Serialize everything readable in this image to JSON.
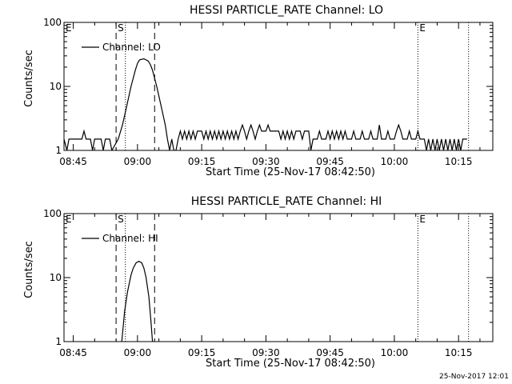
{
  "footer_timestamp": "25-Nov-2017 12:01",
  "chart_data": [
    {
      "type": "line",
      "title": "HESSI PARTICLE_RATE Channel: LO",
      "xlabel": "Start Time (25-Nov-17 08:42:50)",
      "ylabel": "Counts/sec",
      "x_ticks": [
        "08:45",
        "09:00",
        "09:15",
        "09:30",
        "09:45",
        "10:00",
        "10:15"
      ],
      "y_ticks": [
        "1",
        "10",
        "100"
      ],
      "xlim": [
        "08:42:50",
        "10:23:00"
      ],
      "ylim": [
        1,
        100
      ],
      "yscale": "log",
      "legend": {
        "label": "Channel: LO",
        "placement": "top-left"
      },
      "markers": [
        {
          "label": "E",
          "time": "08:42:50",
          "style": "none"
        },
        {
          "label": "S",
          "time": "08:55:00",
          "style": "dashed"
        },
        {
          "label": "",
          "time": "08:57:10",
          "style": "dotted"
        },
        {
          "label": "",
          "time": "09:04:00",
          "style": "dashed"
        },
        {
          "label": "E",
          "time": "10:05:30",
          "style": "dotted"
        },
        {
          "label": "",
          "time": "10:17:20",
          "style": "dotted"
        }
      ],
      "series": [
        {
          "name": "Channel: LO",
          "points": [
            [
              "08:42:50",
              1.5
            ],
            [
              "08:43:30",
              1
            ],
            [
              "08:44:00",
              1.5
            ],
            [
              "08:47:00",
              1.5
            ],
            [
              "08:47:30",
              2
            ],
            [
              "08:48:00",
              1.5
            ],
            [
              "08:49:00",
              1.5
            ],
            [
              "08:49:30",
              1
            ],
            [
              "08:50:00",
              1.5
            ],
            [
              "08:51:30",
              1.5
            ],
            [
              "08:52:00",
              1
            ],
            [
              "08:52:30",
              1.5
            ],
            [
              "08:53:30",
              1.5
            ],
            [
              "08:54:00",
              1
            ],
            [
              "08:55:30",
              1.5
            ],
            [
              "08:56:30",
              2.5
            ],
            [
              "08:57:30",
              5
            ],
            [
              "08:58:30",
              10
            ],
            [
              "08:59:30",
              18
            ],
            [
              "09:00:00",
              23
            ],
            [
              "09:00:30",
              26
            ],
            [
              "09:01:30",
              27
            ],
            [
              "09:02:30",
              25
            ],
            [
              "09:03:00",
              22
            ],
            [
              "09:03:30",
              18
            ],
            [
              "09:04:30",
              10
            ],
            [
              "09:05:30",
              5
            ],
            [
              "09:06:30",
              2.5
            ],
            [
              "09:07:00",
              1.5
            ],
            [
              "09:07:30",
              1
            ],
            [
              "09:08:00",
              1.5
            ],
            [
              "09:08:30",
              1
            ],
            [
              "09:09:00",
              1
            ],
            [
              "09:09:30",
              1.5
            ],
            [
              "09:10:00",
              2
            ],
            [
              "09:10:30",
              1.5
            ],
            [
              "09:11:00",
              2
            ],
            [
              "09:11:30",
              1.5
            ],
            [
              "09:12:00",
              2
            ],
            [
              "09:12:30",
              1.5
            ],
            [
              "09:13:00",
              2
            ],
            [
              "09:13:30",
              1.5
            ],
            [
              "09:14:00",
              2
            ],
            [
              "09:15:00",
              2
            ],
            [
              "09:15:30",
              1.5
            ],
            [
              "09:16:00",
              2
            ],
            [
              "09:16:30",
              1.5
            ],
            [
              "09:17:00",
              2
            ],
            [
              "09:17:30",
              1.5
            ],
            [
              "09:18:00",
              2
            ],
            [
              "09:18:30",
              1.5
            ],
            [
              "09:19:00",
              2
            ],
            [
              "09:19:30",
              1.5
            ],
            [
              "09:20:00",
              2
            ],
            [
              "09:20:30",
              1.5
            ],
            [
              "09:21:00",
              2
            ],
            [
              "09:21:30",
              1.5
            ],
            [
              "09:22:00",
              2
            ],
            [
              "09:22:30",
              1.5
            ],
            [
              "09:23:00",
              2
            ],
            [
              "09:23:30",
              1.5
            ],
            [
              "09:24:00",
              2
            ],
            [
              "09:24:30",
              2.5
            ],
            [
              "09:25:00",
              2
            ],
            [
              "09:25:30",
              1.5
            ],
            [
              "09:26:00",
              2
            ],
            [
              "09:26:30",
              2.5
            ],
            [
              "09:27:00",
              2
            ],
            [
              "09:27:30",
              1.5
            ],
            [
              "09:28:00",
              2
            ],
            [
              "09:28:30",
              2.5
            ],
            [
              "09:29:00",
              2
            ],
            [
              "09:30:00",
              2
            ],
            [
              "09:30:30",
              2.5
            ],
            [
              "09:31:00",
              2
            ],
            [
              "09:33:00",
              2
            ],
            [
              "09:33:30",
              1.5
            ],
            [
              "09:34:00",
              2
            ],
            [
              "09:34:30",
              1.5
            ],
            [
              "09:35:00",
              2
            ],
            [
              "09:35:30",
              1.5
            ],
            [
              "09:36:00",
              2
            ],
            [
              "09:36:30",
              1.5
            ],
            [
              "09:37:00",
              2
            ],
            [
              "09:38:00",
              2
            ],
            [
              "09:38:30",
              1.5
            ],
            [
              "09:39:00",
              2
            ],
            [
              "09:40:00",
              2
            ],
            [
              "09:40:30",
              1
            ],
            [
              "09:41:00",
              1.5
            ],
            [
              "09:42:00",
              1.5
            ],
            [
              "09:42:30",
              2
            ],
            [
              "09:43:00",
              1.5
            ],
            [
              "09:44:00",
              1.5
            ],
            [
              "09:44:30",
              2
            ],
            [
              "09:45:00",
              1.5
            ],
            [
              "09:45:30",
              2
            ],
            [
              "09:46:00",
              1.5
            ],
            [
              "09:46:30",
              2
            ],
            [
              "09:47:00",
              1.5
            ],
            [
              "09:47:30",
              2
            ],
            [
              "09:48:00",
              1.5
            ],
            [
              "09:48:30",
              2
            ],
            [
              "09:49:00",
              1.5
            ],
            [
              "09:50:00",
              1.5
            ],
            [
              "09:50:30",
              2
            ],
            [
              "09:51:00",
              1.5
            ],
            [
              "09:52:00",
              1.5
            ],
            [
              "09:52:30",
              2
            ],
            [
              "09:53:00",
              1.5
            ],
            [
              "09:54:00",
              1.5
            ],
            [
              "09:54:30",
              2
            ],
            [
              "09:55:00",
              1.5
            ],
            [
              "09:56:00",
              1.5
            ],
            [
              "09:56:30",
              2.5
            ],
            [
              "09:57:00",
              1.5
            ],
            [
              "09:58:00",
              1.5
            ],
            [
              "09:58:30",
              2
            ],
            [
              "09:59:00",
              1.5
            ],
            [
              "10:00:00",
              1.5
            ],
            [
              "10:00:30",
              2
            ],
            [
              "10:01:00",
              2.5
            ],
            [
              "10:01:30",
              2
            ],
            [
              "10:02:00",
              1.5
            ],
            [
              "10:03:00",
              1.5
            ],
            [
              "10:03:30",
              2
            ],
            [
              "10:04:00",
              1.5
            ],
            [
              "10:05:00",
              1.5
            ],
            [
              "10:05:30",
              2
            ],
            [
              "10:06:00",
              1.5
            ],
            [
              "10:07:00",
              1.5
            ],
            [
              "10:07:30",
              1
            ],
            [
              "10:08:00",
              1.5
            ],
            [
              "10:08:30",
              1
            ],
            [
              "10:09:00",
              1.5
            ],
            [
              "10:09:30",
              1
            ],
            [
              "10:10:00",
              1.5
            ],
            [
              "10:10:30",
              1
            ],
            [
              "10:11:00",
              1.5
            ],
            [
              "10:11:30",
              1
            ],
            [
              "10:12:00",
              1.5
            ],
            [
              "10:12:30",
              1
            ],
            [
              "10:13:00",
              1.5
            ],
            [
              "10:13:30",
              1
            ],
            [
              "10:14:00",
              1.5
            ],
            [
              "10:14:30",
              1
            ],
            [
              "10:15:00",
              1.5
            ],
            [
              "10:15:30",
              1
            ],
            [
              "10:16:00",
              1.5
            ],
            [
              "10:17:00",
              1.5
            ]
          ]
        }
      ]
    },
    {
      "type": "line",
      "title": "HESSI PARTICLE_RATE Channel: HI",
      "xlabel": "Start Time (25-Nov-17 08:42:50)",
      "ylabel": "Counts/sec",
      "x_ticks": [
        "08:45",
        "09:00",
        "09:15",
        "09:30",
        "09:45",
        "10:00",
        "10:15"
      ],
      "y_ticks": [
        "1",
        "10",
        "100"
      ],
      "xlim": [
        "08:42:50",
        "10:23:00"
      ],
      "ylim": [
        1,
        100
      ],
      "yscale": "log",
      "legend": {
        "label": "Channel: HI",
        "placement": "top-left"
      },
      "markers": [
        {
          "label": "E",
          "time": "08:42:50",
          "style": "none"
        },
        {
          "label": "S",
          "time": "08:55:00",
          "style": "dashed"
        },
        {
          "label": "",
          "time": "08:57:10",
          "style": "dotted"
        },
        {
          "label": "",
          "time": "09:04:00",
          "style": "dashed"
        },
        {
          "label": "E",
          "time": "10:05:30",
          "style": "dotted"
        },
        {
          "label": "",
          "time": "10:17:20",
          "style": "dotted"
        }
      ],
      "series": [
        {
          "name": "Channel: HI",
          "points": [
            [
              "08:56:20",
              1
            ],
            [
              "08:57:00",
              3
            ],
            [
              "08:57:40",
              6
            ],
            [
              "08:58:30",
              11
            ],
            [
              "08:59:00",
              14
            ],
            [
              "08:59:40",
              17
            ],
            [
              "09:00:20",
              18
            ],
            [
              "09:01:00",
              17
            ],
            [
              "09:01:30",
              14
            ],
            [
              "09:02:00",
              10
            ],
            [
              "09:02:40",
              5
            ],
            [
              "09:03:10",
              2
            ],
            [
              "09:03:30",
              1
            ]
          ]
        }
      ]
    }
  ]
}
